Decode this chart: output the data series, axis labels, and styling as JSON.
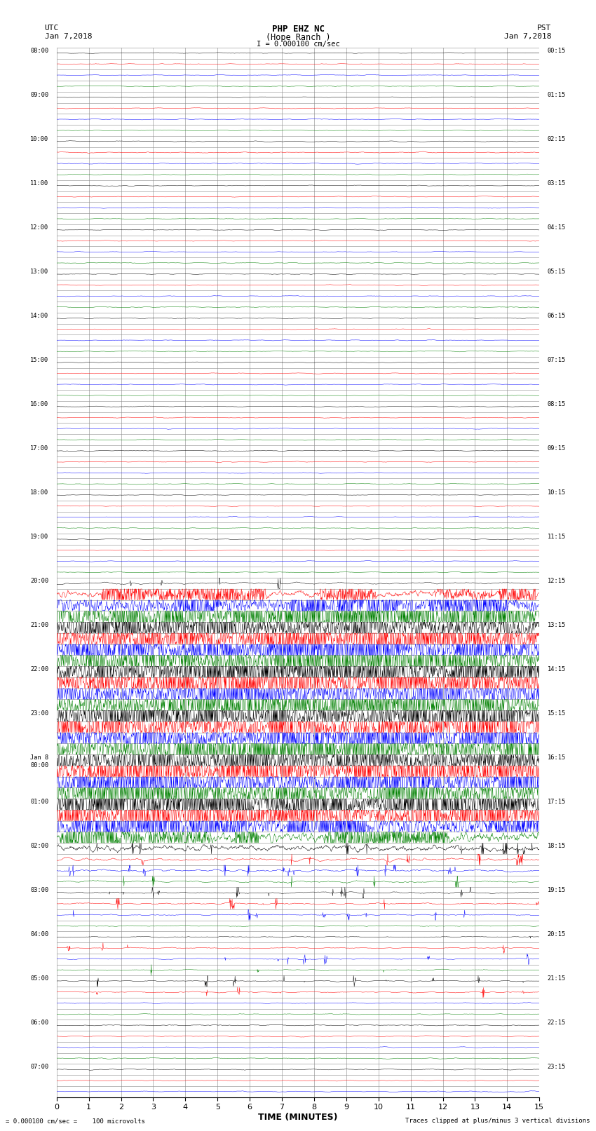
{
  "title_line1": "PHP EHZ NC",
  "title_line2": "(Hope Ranch )",
  "title_line3": "I = 0.000100 cm/sec",
  "left_header_line1": "UTC",
  "left_header_line2": "Jan 7,2018",
  "right_header_line1": "PST",
  "right_header_line2": "Jan 7,2018",
  "xlabel": "TIME (MINUTES)",
  "footer_left": "= 0.000100 cm/sec =    100 microvolts",
  "footer_right": "Traces clipped at plus/minus 3 vertical divisions",
  "xlim": [
    0,
    15
  ],
  "xticks": [
    0,
    1,
    2,
    3,
    4,
    5,
    6,
    7,
    8,
    9,
    10,
    11,
    12,
    13,
    14,
    15
  ],
  "n_rows": 95,
  "colors": [
    "black",
    "red",
    "blue",
    "green"
  ],
  "utc_labels": [
    "08:00",
    "",
    "",
    "",
    "09:00",
    "",
    "",
    "",
    "10:00",
    "",
    "",
    "",
    "11:00",
    "",
    "",
    "",
    "12:00",
    "",
    "",
    "",
    "13:00",
    "",
    "",
    "",
    "14:00",
    "",
    "",
    "",
    "15:00",
    "",
    "",
    "",
    "16:00",
    "",
    "",
    "",
    "17:00",
    "",
    "",
    "",
    "18:00",
    "",
    "",
    "",
    "19:00",
    "",
    "",
    "",
    "20:00",
    "",
    "",
    "",
    "21:00",
    "",
    "",
    "",
    "22:00",
    "",
    "",
    "",
    "23:00",
    "",
    "",
    "",
    "Jan 8\n00:00",
    "",
    "",
    "",
    "01:00",
    "",
    "",
    "",
    "02:00",
    "",
    "",
    "",
    "03:00",
    "",
    "",
    "",
    "04:00",
    "",
    "",
    "",
    "05:00",
    "",
    "",
    "",
    "06:00",
    "",
    "",
    "",
    "07:00",
    "",
    ""
  ],
  "pst_labels": [
    "00:15",
    "",
    "",
    "",
    "01:15",
    "",
    "",
    "",
    "02:15",
    "",
    "",
    "",
    "03:15",
    "",
    "",
    "",
    "04:15",
    "",
    "",
    "",
    "05:15",
    "",
    "",
    "",
    "06:15",
    "",
    "",
    "",
    "07:15",
    "",
    "",
    "",
    "08:15",
    "",
    "",
    "",
    "09:15",
    "",
    "",
    "",
    "10:15",
    "",
    "",
    "",
    "11:15",
    "",
    "",
    "",
    "12:15",
    "",
    "",
    "",
    "13:15",
    "",
    "",
    "",
    "14:15",
    "",
    "",
    "",
    "15:15",
    "",
    "",
    "",
    "16:15",
    "",
    "",
    "",
    "17:15",
    "",
    "",
    "",
    "18:15",
    "",
    "",
    "",
    "19:15",
    "",
    "",
    "",
    "20:15",
    "",
    "",
    "",
    "21:15",
    "",
    "",
    "",
    "22:15",
    "",
    "",
    "",
    "23:15",
    "",
    ""
  ],
  "noise_profile": [
    0.04,
    0.04,
    0.04,
    0.04,
    0.04,
    0.04,
    0.04,
    0.04,
    0.05,
    0.05,
    0.05,
    0.05,
    0.04,
    0.04,
    0.05,
    0.04,
    0.04,
    0.04,
    0.04,
    0.04,
    0.04,
    0.04,
    0.04,
    0.04,
    0.04,
    0.04,
    0.04,
    0.04,
    0.04,
    0.04,
    0.04,
    0.04,
    0.04,
    0.04,
    0.04,
    0.04,
    0.04,
    0.04,
    0.04,
    0.04,
    0.04,
    0.04,
    0.04,
    0.04,
    0.04,
    0.04,
    0.04,
    0.04,
    0.1,
    0.35,
    0.8,
    1.5,
    1.5,
    1.5,
    1.5,
    1.5,
    1.5,
    1.5,
    1.5,
    1.5,
    1.5,
    1.5,
    1.5,
    1.5,
    1.5,
    1.5,
    1.5,
    1.5,
    1.5,
    1.5,
    1.0,
    0.5,
    0.3,
    0.15,
    0.12,
    0.1,
    0.08,
    0.08,
    0.06,
    0.06,
    0.06,
    0.06,
    0.06,
    0.06,
    0.06,
    0.06,
    0.05,
    0.05,
    0.05,
    0.05,
    0.05,
    0.05,
    0.05,
    0.05,
    0.05
  ],
  "background_color": "#ffffff",
  "grid_color": "#888888"
}
